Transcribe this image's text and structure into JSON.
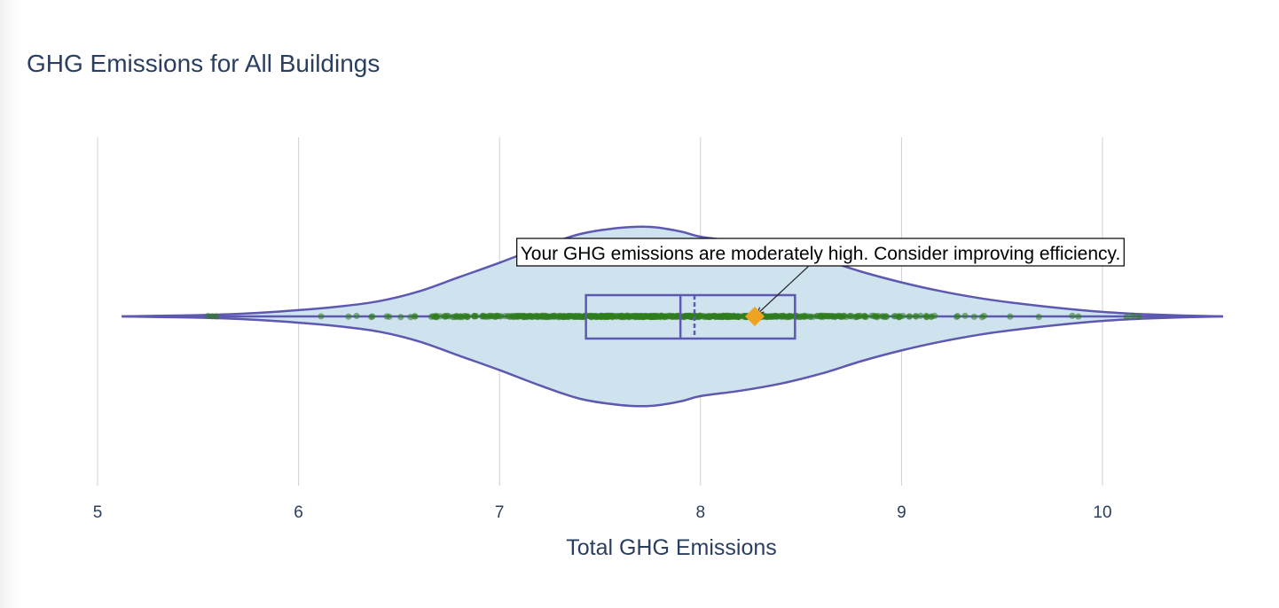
{
  "chart_data": {
    "type": "violin",
    "title": "GHG Emissions for All Buildings",
    "xlabel": "Total GHG Emissions",
    "ylabel": "",
    "orientation": "horizontal",
    "xlim": [
      4.98,
      10.88
    ],
    "xticks": [
      5,
      6,
      7,
      8,
      9,
      10
    ],
    "grid": true,
    "violin_extent": [
      5.12,
      10.6
    ],
    "density_profile": [
      [
        5.12,
        0.0
      ],
      [
        5.4,
        0.01
      ],
      [
        5.6,
        0.02
      ],
      [
        5.8,
        0.04
      ],
      [
        6.0,
        0.07
      ],
      [
        6.2,
        0.11
      ],
      [
        6.4,
        0.17
      ],
      [
        6.6,
        0.28
      ],
      [
        6.8,
        0.44
      ],
      [
        7.0,
        0.6
      ],
      [
        7.2,
        0.77
      ],
      [
        7.4,
        0.92
      ],
      [
        7.6,
        0.99
      ],
      [
        7.75,
        1.0
      ],
      [
        7.9,
        0.95
      ],
      [
        8.0,
        0.89
      ],
      [
        8.2,
        0.83
      ],
      [
        8.4,
        0.75
      ],
      [
        8.6,
        0.64
      ],
      [
        8.8,
        0.5
      ],
      [
        9.0,
        0.38
      ],
      [
        9.2,
        0.28
      ],
      [
        9.4,
        0.2
      ],
      [
        9.6,
        0.14
      ],
      [
        9.8,
        0.09
      ],
      [
        10.0,
        0.05
      ],
      [
        10.2,
        0.025
      ],
      [
        10.4,
        0.01
      ],
      [
        10.6,
        0.0
      ]
    ],
    "box": {
      "q1": 7.43,
      "median": 7.9,
      "mean": 7.97,
      "q3": 8.47,
      "whisker_low": 5.12,
      "whisker_high": 10.6
    },
    "points_range": [
      5.55,
      10.18
    ],
    "highlight": {
      "value": 8.27,
      "annotation": "Your GHG emissions are moderately high. Consider improving efficiency."
    },
    "colors": {
      "violin_fill": "#cfe3ef",
      "violin_line": "#5d58b0",
      "points": "#2f7d1e",
      "highlight": "#f0a323"
    }
  }
}
